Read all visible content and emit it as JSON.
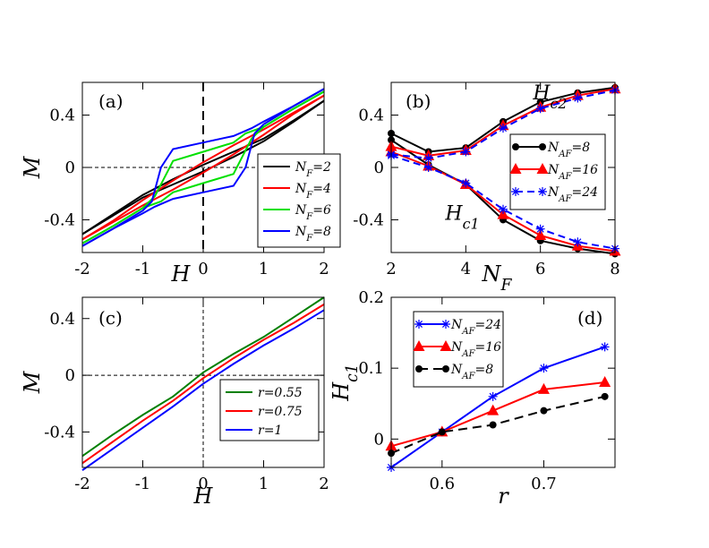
{
  "chart_data": [
    {
      "panel": "(a)",
      "type": "line",
      "xlabel": "H",
      "ylabel": "M",
      "xlim": [
        -2,
        2
      ],
      "ylim": [
        -0.65,
        0.65
      ],
      "xticks": [
        -2,
        -1,
        0,
        1,
        2
      ],
      "xtick_labels": [
        "-2",
        "-1",
        "0",
        "1",
        "2"
      ],
      "yticks": [
        -0.4,
        0,
        0.4
      ],
      "ytick_labels": [
        "-0.4",
        "0",
        "0.4"
      ],
      "legend": "right",
      "series": [
        {
          "name": "N_F=2",
          "label_main": "N",
          "label_sub": "F",
          "label_rest": "=2",
          "color": "#000000",
          "x": [
            -2,
            -1.5,
            -1,
            -0.5,
            0,
            0.5,
            1,
            1.5,
            2
          ],
          "y": [
            -0.51,
            -0.37,
            -0.23,
            -0.13,
            -0.03,
            0.08,
            0.2,
            0.35,
            0.51
          ],
          "x2": [
            2,
            1.5,
            1,
            0.5,
            0,
            -0.5,
            -1,
            -1.5,
            -2
          ],
          "y2": [
            0.51,
            0.36,
            0.22,
            0.12,
            0.02,
            -0.09,
            -0.21,
            -0.36,
            -0.51
          ]
        },
        {
          "name": "N_F=4",
          "label_main": "N",
          "label_sub": "F",
          "label_rest": "=4",
          "color": "#ff0000",
          "x": [
            -2,
            -1.5,
            -1,
            -0.5,
            0,
            0.5,
            1,
            1.5,
            2
          ],
          "y": [
            -0.55,
            -0.42,
            -0.29,
            -0.17,
            -0.04,
            0.1,
            0.25,
            0.41,
            0.55
          ],
          "x2": [
            2,
            1.5,
            1,
            0.5,
            0,
            -0.5,
            -1,
            -1.5,
            -2
          ],
          "y2": [
            0.55,
            0.42,
            0.29,
            0.17,
            0.04,
            -0.1,
            -0.25,
            -0.41,
            -0.55
          ]
        },
        {
          "name": "N_F=6",
          "label_main": "N",
          "label_sub": "F",
          "label_rest": "=6",
          "color": "#00e000",
          "x": [
            -2,
            -1.5,
            -1,
            -0.8,
            -0.5,
            0,
            0.5,
            0.7,
            1,
            1.5,
            2
          ],
          "y": [
            -0.58,
            -0.45,
            -0.31,
            -0.22,
            0.05,
            0.12,
            0.19,
            0.26,
            0.31,
            0.45,
            0.58
          ],
          "x2": [
            2,
            1.5,
            1,
            0.8,
            0.5,
            0,
            -0.5,
            -0.7,
            -1,
            -1.5,
            -2
          ],
          "y2": [
            0.58,
            0.45,
            0.31,
            0.22,
            -0.05,
            -0.12,
            -0.19,
            -0.26,
            -0.31,
            -0.45,
            -0.58
          ]
        },
        {
          "name": "N_F=8",
          "label_main": "N",
          "label_sub": "F",
          "label_rest": "=8",
          "color": "#0000ff",
          "x": [
            -2,
            -1.5,
            -1,
            -0.85,
            -0.7,
            -0.5,
            0,
            0.5,
            0.8,
            1,
            1.5,
            2
          ],
          "y": [
            -0.6,
            -0.47,
            -0.33,
            -0.26,
            0.0,
            0.14,
            0.19,
            0.24,
            0.3,
            0.35,
            0.47,
            0.6
          ],
          "x2": [
            2,
            1.5,
            1,
            0.85,
            0.7,
            0.5,
            0,
            -0.5,
            -0.8,
            -1,
            -1.5,
            -2
          ],
          "y2": [
            0.6,
            0.47,
            0.33,
            0.26,
            0.0,
            -0.14,
            -0.19,
            -0.24,
            -0.3,
            -0.35,
            -0.47,
            -0.6
          ]
        }
      ]
    },
    {
      "panel": "(b)",
      "type": "line",
      "xlabel": "N",
      "xlabel_sub": "F",
      "ylabel": "",
      "xlim": [
        2,
        8
      ],
      "ylim": [
        -0.65,
        0.65
      ],
      "xticks": [
        2,
        4,
        6,
        8
      ],
      "xtick_labels": [
        "2",
        "4",
        "6",
        "8"
      ],
      "yticks": [
        -0.4,
        0,
        0.4
      ],
      "ytick_labels": [
        "-0.4",
        "0",
        "0.4"
      ],
      "legend": "right",
      "annotations": [
        {
          "main": "H",
          "sub": "c2",
          "x": 5.8,
          "y": 0.52
        },
        {
          "main": "H",
          "sub": "c1",
          "x": 3.45,
          "y": -0.4
        }
      ],
      "series": [
        {
          "name": "N_AF=8",
          "label_main": "N",
          "label_sub": "AF",
          "label_rest": "=8",
          "color": "#000000",
          "marker": "circle",
          "dash": "",
          "x": [
            2,
            3,
            4,
            5,
            6,
            7,
            8
          ],
          "hc2": [
            0.26,
            0.12,
            0.15,
            0.35,
            0.5,
            0.57,
            0.61
          ],
          "hc1": [
            0.21,
            0.02,
            -0.13,
            -0.4,
            -0.56,
            -0.62,
            -0.66
          ]
        },
        {
          "name": "N_AF=16",
          "label_main": "N",
          "label_sub": "AF",
          "label_rest": "=16",
          "color": "#ff0000",
          "marker": "triangle",
          "dash": "",
          "x": [
            2,
            3,
            4,
            5,
            6,
            7,
            8
          ],
          "hc2": [
            0.16,
            0.09,
            0.13,
            0.32,
            0.46,
            0.55,
            0.6
          ],
          "hc1": [
            0.12,
            0.01,
            -0.13,
            -0.36,
            -0.52,
            -0.6,
            -0.64
          ]
        },
        {
          "name": "N_AF=24",
          "label_main": "N",
          "label_sub": "AF",
          "label_rest": "=24",
          "color": "#0000ff",
          "marker": "star",
          "dash": "8,5",
          "x": [
            2,
            3,
            4,
            5,
            6,
            7,
            8
          ],
          "hc2": [
            0.1,
            0.07,
            0.12,
            0.3,
            0.45,
            0.53,
            0.59
          ],
          "hc1": [
            0.09,
            0.0,
            -0.12,
            -0.32,
            -0.47,
            -0.57,
            -0.62
          ]
        }
      ]
    },
    {
      "panel": "(c)",
      "type": "line",
      "xlabel": "H",
      "ylabel": "M",
      "xlim": [
        -2,
        2
      ],
      "ylim": [
        -0.65,
        0.55
      ],
      "xticks": [
        -2,
        -1,
        0,
        1,
        2
      ],
      "xtick_labels": [
        "-2",
        "-1",
        "0",
        "1",
        "2"
      ],
      "yticks": [
        -0.4,
        0,
        0.4
      ],
      "ytick_labels": [
        "-0.4",
        "0",
        "0.4"
      ],
      "legend": "right",
      "series": [
        {
          "name": "r=0.55",
          "label_main": "r=0.55",
          "label_sub": "",
          "label_rest": "",
          "color": "#008000",
          "x": [
            -2,
            -1.5,
            -1,
            -0.5,
            0,
            0.5,
            1,
            1.5,
            2
          ],
          "y": [
            -0.57,
            -0.42,
            -0.28,
            -0.15,
            0.02,
            0.15,
            0.27,
            0.41,
            0.55
          ]
        },
        {
          "name": "r=0.75",
          "label_main": "r=0.75",
          "label_sub": "",
          "label_rest": "",
          "color": "#ff0000",
          "x": [
            -2,
            -1.5,
            -1,
            -0.5,
            0,
            0.5,
            1,
            1.5,
            2
          ],
          "y": [
            -0.62,
            -0.47,
            -0.32,
            -0.18,
            -0.02,
            0.12,
            0.25,
            0.37,
            0.5
          ]
        },
        {
          "name": "r=1",
          "label_main": "r=1",
          "label_sub": "",
          "label_rest": "",
          "color": "#0000ff",
          "x": [
            -2,
            -1.5,
            -1,
            -0.5,
            0,
            0.5,
            1,
            1.5,
            2
          ],
          "y": [
            -0.67,
            -0.52,
            -0.37,
            -0.22,
            -0.06,
            0.08,
            0.21,
            0.33,
            0.46
          ]
        }
      ]
    },
    {
      "panel": "(d)",
      "type": "line",
      "xlabel": "r",
      "ylabel": "H",
      "ylabel_sub": "c1",
      "xlim": [
        0.55,
        0.77
      ],
      "ylim": [
        -0.04,
        0.2
      ],
      "xticks": [
        0.6,
        0.7
      ],
      "xtick_labels": [
        "0.6",
        "0.7"
      ],
      "yticks": [
        0,
        0.1,
        0.2
      ],
      "ytick_labels": [
        "0",
        "0.1",
        "0.2"
      ],
      "legend": "top-left",
      "series": [
        {
          "name": "N_AF=24",
          "label_main": "N",
          "label_sub": "AF",
          "label_rest": "=24",
          "color": "#0000ff",
          "marker": "star",
          "dash": "",
          "x": [
            0.55,
            0.6,
            0.65,
            0.7,
            0.76
          ],
          "y": [
            -0.04,
            0.01,
            0.06,
            0.1,
            0.13
          ]
        },
        {
          "name": "N_AF=16",
          "label_main": "N",
          "label_sub": "AF",
          "label_rest": "=16",
          "color": "#ff0000",
          "marker": "triangle",
          "dash": "",
          "x": [
            0.55,
            0.6,
            0.65,
            0.7,
            0.76
          ],
          "y": [
            -0.01,
            0.01,
            0.04,
            0.07,
            0.08
          ]
        },
        {
          "name": "N_AF=8",
          "label_main": "N",
          "label_sub": "AF",
          "label_rest": "=8",
          "color": "#000000",
          "marker": "circle",
          "dash": "10,6",
          "x": [
            0.55,
            0.6,
            0.65,
            0.7,
            0.76
          ],
          "y": [
            -0.02,
            0.01,
            0.02,
            0.04,
            0.06
          ]
        }
      ]
    }
  ]
}
